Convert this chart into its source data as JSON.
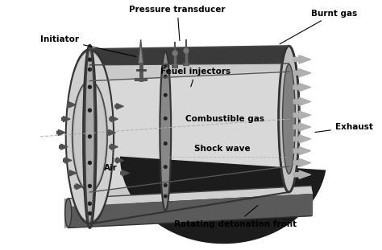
{
  "title": "",
  "background_color": "#ffffff",
  "labels": {
    "pressure_transducer": "Pressure transducer",
    "burnt_gas": "Burnt gas",
    "initiator": "Initiator",
    "fuel_injectors": "Feuel injectors",
    "combustible_gas": "Combustible gas",
    "shock_wave": "Shock wave",
    "air": "Air",
    "exhaust": "Exhaust",
    "rotating_detonation": "Rotating detonation front"
  },
  "colors": {
    "outer_body": "#b8b8b8",
    "outer_body_dark": "#787878",
    "inner_light": "#e0e0e0",
    "inner_white": "#f0f0f0",
    "dark_region": "#1a1a1a",
    "dark_mid": "#303030",
    "flange": "#888888",
    "flange_dark": "#555555",
    "arrow_gray": "#606060",
    "arrow_light": "#b0b0b0",
    "rail_top": "#c0c0c0",
    "rail_body": "#707070",
    "text_color": "#000000",
    "dashed_line": "#aaaaaa"
  },
  "figsize": [
    4.74,
    3.11
  ],
  "dpi": 100
}
